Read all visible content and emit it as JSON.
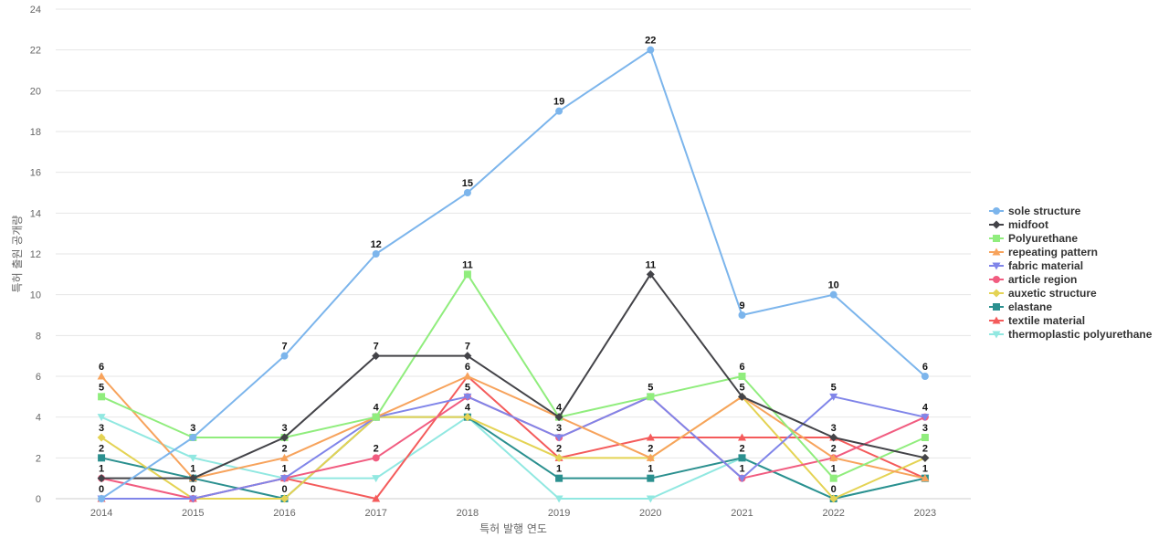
{
  "chart_data": {
    "type": "line",
    "title": "",
    "xlabel": "특허 발행 연도",
    "ylabel": "특허 출원 공개량",
    "ylim": [
      0,
      24
    ],
    "yticks": [
      0,
      2,
      4,
      6,
      8,
      10,
      12,
      14,
      16,
      18,
      20,
      22,
      24
    ],
    "grid": true,
    "legend_position": "right",
    "categories": [
      "2014",
      "2015",
      "2016",
      "2017",
      "2018",
      "2019",
      "2020",
      "2021",
      "2022",
      "2023"
    ],
    "series": [
      {
        "name": "sole structure",
        "color": "#7cb5ec",
        "marker": "circle",
        "values": [
          0,
          3,
          7,
          12,
          15,
          19,
          22,
          9,
          10,
          6
        ]
      },
      {
        "name": "midfoot",
        "color": "#434348",
        "marker": "diamond",
        "values": [
          1,
          1,
          3,
          7,
          7,
          4,
          11,
          5,
          3,
          2
        ]
      },
      {
        "name": "Polyurethane",
        "color": "#90ed7d",
        "marker": "square",
        "values": [
          5,
          3,
          3,
          4,
          11,
          4,
          5,
          6,
          1,
          3
        ]
      },
      {
        "name": "repeating pattern",
        "color": "#f7a35c",
        "marker": "triangle",
        "values": [
          6,
          1,
          2,
          4,
          6,
          4,
          2,
          5,
          2,
          1
        ]
      },
      {
        "name": "fabric material",
        "color": "#8085e9",
        "marker": "triangle-down",
        "values": [
          0,
          0,
          1,
          4,
          5,
          3,
          5,
          1,
          5,
          4
        ]
      },
      {
        "name": "article region",
        "color": "#f15c80",
        "marker": "circle",
        "values": [
          1,
          0,
          1,
          2,
          5,
          3,
          5,
          1,
          2,
          4
        ]
      },
      {
        "name": "auxetic structure",
        "color": "#e4d354",
        "marker": "diamond",
        "values": [
          3,
          0,
          0,
          4,
          4,
          2,
          2,
          5,
          0,
          2
        ]
      },
      {
        "name": "elastane",
        "color": "#2b908f",
        "marker": "square",
        "values": [
          2,
          1,
          0,
          4,
          4,
          1,
          1,
          2,
          0,
          1
        ]
      },
      {
        "name": "textile material",
        "color": "#f45b5b",
        "marker": "triangle",
        "values": [
          0,
          0,
          1,
          0,
          6,
          2,
          3,
          3,
          3,
          1
        ]
      },
      {
        "name": "thermoplastic polyurethane",
        "color": "#91e8e1",
        "marker": "triangle-down",
        "values": [
          4,
          2,
          1,
          1,
          4,
          0,
          0,
          2,
          0,
          1
        ]
      }
    ],
    "data_labels_series": [
      "sole structure",
      "midfoot",
      "Polyurethane",
      "repeating pattern",
      "fabric material",
      "article region",
      "auxetic structure",
      "elastane"
    ]
  }
}
